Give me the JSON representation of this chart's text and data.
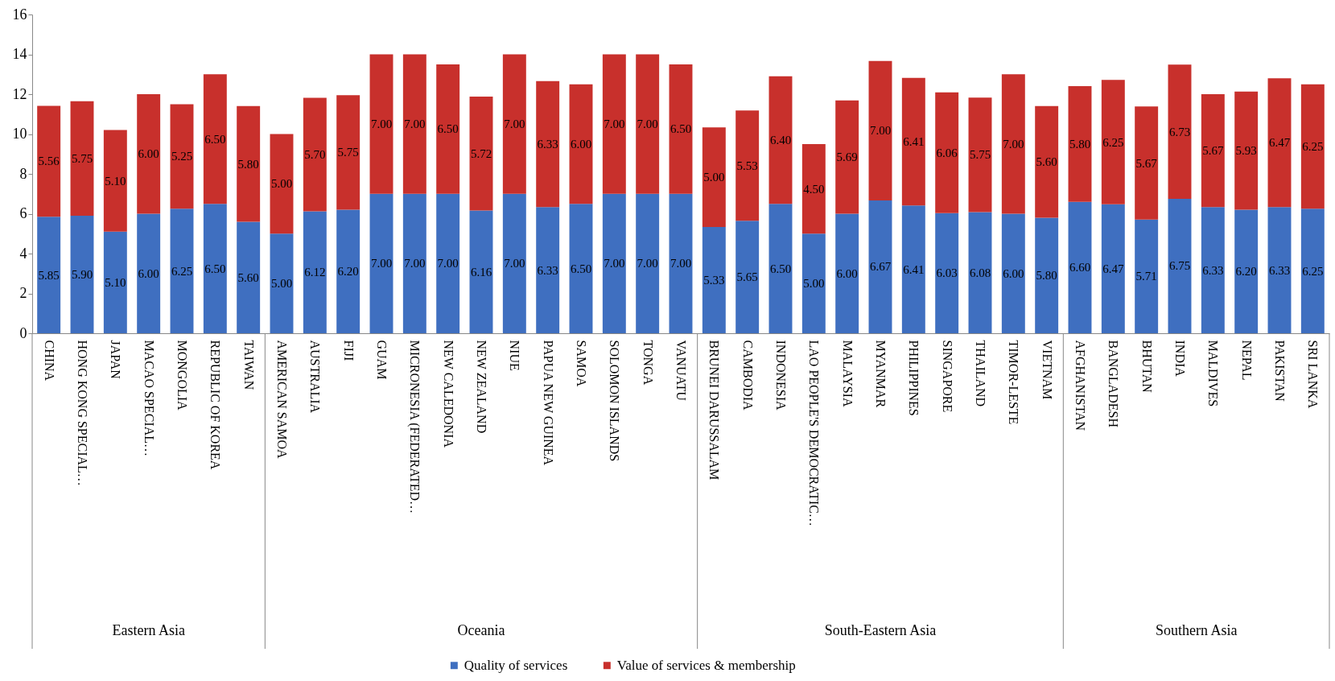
{
  "chart_data": {
    "type": "bar",
    "stacked": true,
    "legend": "bottom",
    "grid": false,
    "categories": [
      "CHINA",
      "HONG KONG SPECIAL…",
      "JAPAN",
      "MACAO SPECIAL…",
      "MONGOLIA",
      "REPUBLIC OF KOREA",
      "TAIWAN",
      "AMERICAN SAMOA",
      "AUSTRALIA",
      "FIJI",
      "GUAM",
      "MICRONESIA (FEDERATED…",
      "NEW CALEDONIA",
      "NEW ZEALAND",
      "NIUE",
      "PAPUA NEW GUINEA",
      "SAMOA",
      "SOLOMON ISLANDS",
      "TONGA",
      "VANUATU",
      "BRUNEI DARUSSALAM",
      "CAMBODIA",
      "INDONESIA",
      "LAO PEOPLE'S DEMOCRATIC…",
      "MALAYSIA",
      "MYANMAR",
      "PHILIPPINES",
      "SINGAPORE",
      "THAILAND",
      "TIMOR-LESTE",
      "VIETNAM",
      "AFGHANISTAN",
      "BANGLADESH",
      "BHUTAN",
      "INDIA",
      "MALDIVES",
      "NEPAL",
      "PAKISTAN",
      "SRI LANKA"
    ],
    "series": [
      {
        "name": "Quality of services",
        "color": "#3f6fc0",
        "values": [
          5.85,
          5.9,
          5.1,
          6.0,
          6.25,
          6.5,
          5.6,
          5.0,
          6.12,
          6.2,
          7.0,
          7.0,
          7.0,
          6.16,
          7.0,
          6.33,
          6.5,
          7.0,
          7.0,
          7.0,
          5.33,
          5.65,
          6.5,
          5.0,
          6.0,
          6.67,
          6.41,
          6.03,
          6.08,
          6.0,
          5.8,
          6.6,
          6.47,
          5.71,
          6.75,
          6.33,
          6.2,
          6.33,
          6.25
        ],
        "value_labels": [
          "5.85",
          "5.90",
          "5.10",
          "6.00",
          "6.25",
          "6.50",
          "5.60",
          "5.00",
          "6.12",
          "6.20",
          "7.00",
          "7.00",
          "7.00",
          "6.16",
          "7.00",
          "6.33",
          "6.50",
          "7.00",
          "7.00",
          "7.00",
          "5.33",
          "5.65",
          "6.50",
          "5.00",
          "6.00",
          "6.67",
          "6.41",
          "6.03",
          "6.08",
          "6.00",
          "5.80",
          "6.60",
          "6.47",
          "5.71",
          "6.75",
          "6.33",
          "6.20",
          "6.33",
          "6.25"
        ]
      },
      {
        "name": "Value of services & membership",
        "color": "#c8302c",
        "values": [
          5.56,
          5.75,
          5.1,
          6.0,
          5.25,
          6.5,
          5.8,
          5.0,
          5.7,
          5.75,
          7.0,
          7.0,
          6.5,
          5.72,
          7.0,
          6.33,
          6.0,
          7.0,
          7.0,
          6.5,
          5.0,
          5.53,
          6.4,
          4.5,
          5.69,
          7.0,
          6.41,
          6.06,
          5.75,
          7.0,
          5.6,
          5.8,
          6.25,
          5.67,
          6.73,
          5.67,
          5.93,
          6.47,
          6.25
        ],
        "value_labels": [
          "5.56",
          "5.75",
          "5.10",
          "6.00",
          "5.25",
          "6.50",
          "5.80",
          "5.00",
          "5.70",
          "5.75",
          "7.00",
          "7.00",
          "6.50",
          "5.72",
          "7.00",
          "6.33",
          "6.00",
          "7.00",
          "7.00",
          "6.50",
          "5.00",
          "5.53",
          "6.40",
          "4.50",
          "5.69",
          "7.00",
          "6.41",
          "6.06",
          "5.75",
          "7.00",
          "5.60",
          "5.80",
          "6.25",
          "5.67",
          "6.73",
          "5.67",
          "5.93",
          "6.47",
          "6.25"
        ]
      }
    ],
    "ylim": [
      0,
      16
    ],
    "yticks": [
      0,
      2,
      4,
      6,
      8,
      10,
      12,
      14,
      16
    ],
    "annotations": [
      "Eastern Asia",
      "Oceania",
      "South-Eastern Asia",
      "Southern Asia"
    ]
  }
}
